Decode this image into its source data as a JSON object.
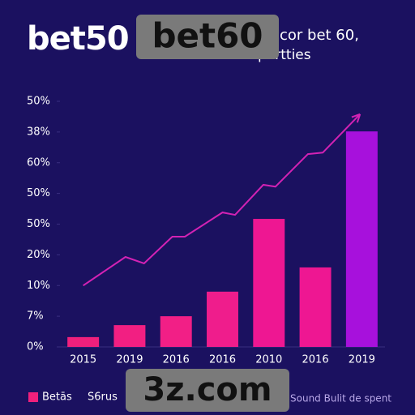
{
  "chart_data": {
    "type": "bar",
    "title": "bet50",
    "subtitle": [
      "cor bet 60,",
      "pertties"
    ],
    "categories": [
      "2015",
      "2019",
      "2016",
      "2016",
      "2010",
      "2016",
      "2019"
    ],
    "values": [
      0.32,
      0.71,
      1.0,
      1.8,
      4.17,
      2.59,
      7.02
    ],
    "colors": [
      "#f0207c",
      "#f21f82",
      "#f21f86",
      "#ef1d8c",
      "#ee1792",
      "#ee1792",
      "#a711dc"
    ],
    "ylim": [
      0,
      8
    ],
    "yticks": [
      {
        "value": 0,
        "label": "0%"
      },
      {
        "value": 1,
        "label": "7%"
      },
      {
        "value": 2,
        "label": "10%"
      },
      {
        "value": 3,
        "label": "20%"
      },
      {
        "value": 4,
        "label": "50%"
      },
      {
        "value": 5,
        "label": "50%"
      },
      {
        "value": 6,
        "label": "60%"
      },
      {
        "value": 7,
        "label": "38%"
      },
      {
        "value": 8,
        "label": "50%"
      }
    ],
    "line": {
      "color": "#d322b4",
      "x": [
        0,
        0.91,
        1.31,
        1.92,
        2.19,
        3.0,
        3.27,
        3.88,
        4.14,
        4.84,
        5.16,
        5.89
      ],
      "y": [
        2.0,
        2.93,
        2.72,
        3.59,
        3.59,
        4.38,
        4.3,
        5.28,
        5.22,
        6.28,
        6.33,
        7.47
      ]
    },
    "legend": [
      {
        "name": "Betās",
        "color": "#f0207c"
      },
      {
        "name": "S6rus"
      }
    ],
    "note": "Sound Bulit de spent"
  },
  "overlays": [
    "bet60",
    "3z.com"
  ]
}
